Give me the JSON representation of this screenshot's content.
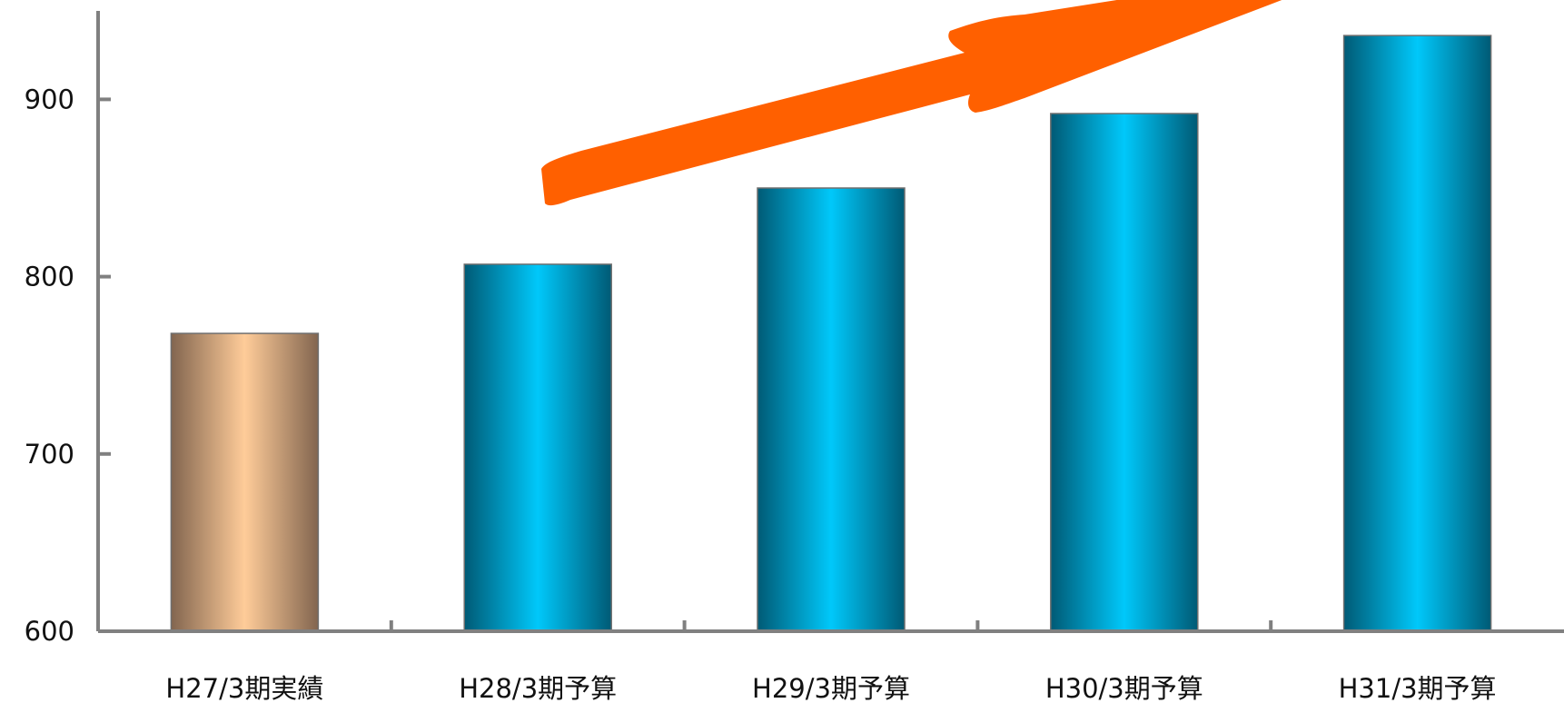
{
  "chart_data": {
    "type": "bar",
    "categories": [
      "H27/3期実績",
      "H28/3期予算",
      "H29/3期予算",
      "H30/3期予算",
      "H31/3期予算"
    ],
    "values": [
      768,
      807,
      850,
      892,
      936
    ],
    "ylim": [
      600,
      950
    ],
    "yticks": [
      600,
      700,
      800,
      900
    ],
    "grid": false,
    "colors": {
      "actual": [
        "#82654f",
        "#ffcc99"
      ],
      "budget": [
        "#005a75",
        "#00c8fa"
      ],
      "axis": "#808080",
      "trend_arrow": "#ff6000"
    },
    "bar_styles": [
      "actual",
      "budget",
      "budget",
      "budget",
      "budget"
    ]
  }
}
